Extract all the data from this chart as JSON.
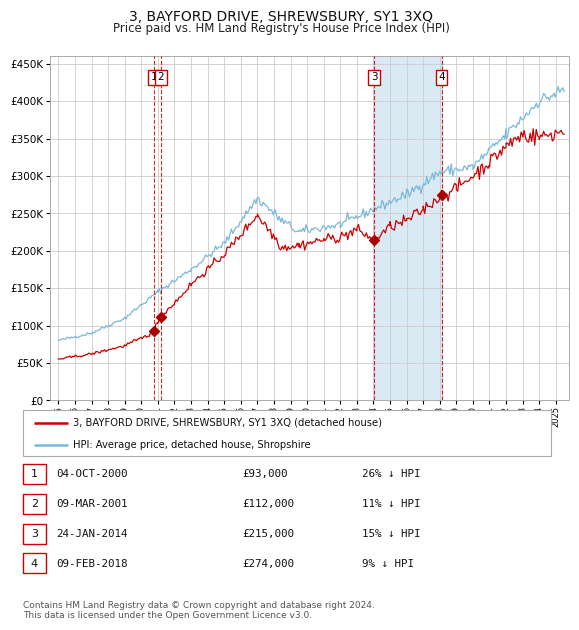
{
  "title": "3, BAYFORD DRIVE, SHREWSBURY, SY1 3XQ",
  "subtitle": "Price paid vs. HM Land Registry's House Price Index (HPI)",
  "title_fontsize": 10,
  "subtitle_fontsize": 8.5,
  "background_color": "#ffffff",
  "grid_color": "#cccccc",
  "hpi_color": "#7ab8d9",
  "price_color": "#cc0000",
  "point_color": "#aa0000",
  "dashed_color": "#cc0000",
  "ylim": [
    0,
    460000
  ],
  "yticks": [
    0,
    50000,
    100000,
    150000,
    200000,
    250000,
    300000,
    350000,
    400000,
    450000
  ],
  "xlim_start": 1994.5,
  "xlim_end": 2025.8,
  "transactions": [
    {
      "num": 1,
      "date_x": 2000.76,
      "price": 93000
    },
    {
      "num": 2,
      "date_x": 2001.19,
      "price": 112000
    },
    {
      "num": 3,
      "date_x": 2014.06,
      "price": 215000
    },
    {
      "num": 4,
      "date_x": 2018.11,
      "price": 274000
    }
  ],
  "transaction_box_color": "#cc0000",
  "shade_start": 2014.06,
  "shade_end": 2018.11,
  "shade_color": "#daeaf5",
  "legend_red_label": "3, BAYFORD DRIVE, SHREWSBURY, SY1 3XQ (detached house)",
  "legend_blue_label": "HPI: Average price, detached house, Shropshire",
  "table_rows": [
    {
      "num": "1",
      "date": "04-OCT-2000",
      "price": "£93,000",
      "pct": "26% ↓ HPI"
    },
    {
      "num": "2",
      "date": "09-MAR-2001",
      "price": "£112,000",
      "pct": "11% ↓ HPI"
    },
    {
      "num": "3",
      "date": "24-JAN-2014",
      "price": "£215,000",
      "pct": "15% ↓ HPI"
    },
    {
      "num": "4",
      "date": "09-FEB-2018",
      "price": "£274,000",
      "pct": "9% ↓ HPI"
    }
  ],
  "footer": "Contains HM Land Registry data © Crown copyright and database right 2024.\nThis data is licensed under the Open Government Licence v3.0.",
  "footer_fontsize": 6.5
}
